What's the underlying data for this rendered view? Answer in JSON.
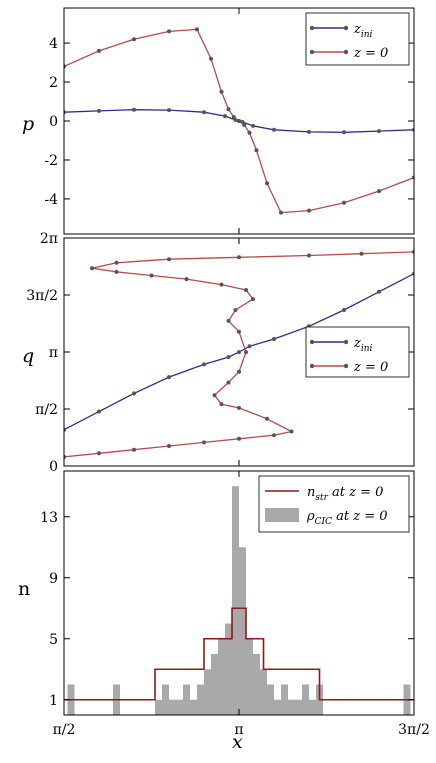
{
  "chart_data": [
    {
      "type": "line",
      "panel": "top",
      "ylabel": "p",
      "ylim": [
        -5.8,
        5.8
      ],
      "yticks": [
        -4,
        -2,
        0,
        2,
        4
      ],
      "ytick_labels": [
        "-4",
        "-2",
        "0",
        "2",
        "4"
      ],
      "xlim": [
        0.5,
        1.5
      ],
      "legend": {
        "position": "top-right",
        "entries": [
          "z_ini",
          "z = 0"
        ]
      },
      "series": [
        {
          "name": "z_ini",
          "color": "#2b2f8c",
          "points": [
            [
              0.5,
              0.45
            ],
            [
              0.6,
              0.52
            ],
            [
              0.7,
              0.58
            ],
            [
              0.8,
              0.56
            ],
            [
              0.9,
              0.45
            ],
            [
              0.96,
              0.25
            ],
            [
              0.99,
              0.05
            ],
            [
              1.0,
              0.0
            ],
            [
              1.01,
              -0.05
            ],
            [
              1.04,
              -0.25
            ],
            [
              1.1,
              -0.45
            ],
            [
              1.2,
              -0.56
            ],
            [
              1.3,
              -0.58
            ],
            [
              1.4,
              -0.52
            ],
            [
              1.5,
              -0.45
            ]
          ]
        },
        {
          "name": "z = 0",
          "color": "#b84a4a",
          "points": [
            [
              0.5,
              2.8
            ],
            [
              0.6,
              3.6
            ],
            [
              0.7,
              4.2
            ],
            [
              0.8,
              4.6
            ],
            [
              0.88,
              4.7
            ],
            [
              0.92,
              3.2
            ],
            [
              0.95,
              1.5
            ],
            [
              0.97,
              0.6
            ],
            [
              0.985,
              0.2
            ],
            [
              1.0,
              0.0
            ],
            [
              1.015,
              -0.2
            ],
            [
              1.03,
              -0.6
            ],
            [
              1.05,
              -1.5
            ],
            [
              1.08,
              -3.2
            ],
            [
              1.12,
              -4.7
            ],
            [
              1.2,
              -4.6
            ],
            [
              1.3,
              -4.2
            ],
            [
              1.4,
              -3.6
            ],
            [
              1.5,
              -2.9
            ]
          ]
        }
      ]
    },
    {
      "type": "line",
      "panel": "middle",
      "ylabel": "q",
      "ylim": [
        0,
        6.2832
      ],
      "yticks": [
        0,
        1.5708,
        3.1416,
        4.7124,
        6.2832
      ],
      "ytick_labels": [
        "0",
        "π/2",
        "π",
        "3π/2",
        "2π"
      ],
      "xlim": [
        0.5,
        1.5
      ],
      "legend": {
        "position": "center-right",
        "entries": [
          "z_ini",
          "z = 0"
        ]
      },
      "series": [
        {
          "name": "z_ini",
          "color": "#2b2f8c",
          "points": [
            [
              0.5,
              1.0
            ],
            [
              0.6,
              1.5
            ],
            [
              0.7,
              2.0
            ],
            [
              0.8,
              2.45
            ],
            [
              0.9,
              2.8
            ],
            [
              0.97,
              3.0
            ],
            [
              1.0,
              3.14
            ],
            [
              1.03,
              3.3
            ],
            [
              1.1,
              3.5
            ],
            [
              1.2,
              3.85
            ],
            [
              1.3,
              4.3
            ],
            [
              1.4,
              4.8
            ],
            [
              1.5,
              5.3
            ]
          ]
        },
        {
          "name": "z = 0",
          "color": "#b84a4a",
          "points": [
            [
              0.5,
              0.25
            ],
            [
              0.6,
              0.35
            ],
            [
              0.7,
              0.45
            ],
            [
              0.8,
              0.55
            ],
            [
              0.9,
              0.65
            ],
            [
              1.0,
              0.75
            ],
            [
              1.1,
              0.85
            ],
            [
              1.15,
              0.95
            ],
            [
              1.08,
              1.3
            ],
            [
              1.0,
              1.6
            ],
            [
              0.95,
              1.7
            ],
            [
              0.93,
              1.95
            ],
            [
              0.97,
              2.3
            ],
            [
              1.0,
              2.6
            ],
            [
              1.02,
              3.14
            ],
            [
              1.0,
              3.7
            ],
            [
              0.97,
              4.0
            ],
            [
              0.99,
              4.3
            ],
            [
              1.04,
              4.6
            ],
            [
              1.02,
              4.85
            ],
            [
              0.95,
              5.0
            ],
            [
              0.85,
              5.15
            ],
            [
              0.75,
              5.25
            ],
            [
              0.65,
              5.35
            ],
            [
              0.58,
              5.45
            ],
            [
              0.65,
              5.6
            ],
            [
              0.8,
              5.7
            ],
            [
              1.0,
              5.75
            ],
            [
              1.2,
              5.8
            ],
            [
              1.35,
              5.85
            ],
            [
              1.5,
              5.9
            ]
          ]
        }
      ]
    },
    {
      "type": "bar",
      "panel": "bottom",
      "ylabel": "n",
      "xlabel": "x",
      "ylim": [
        0,
        16
      ],
      "yticks": [
        1,
        5,
        9,
        13
      ],
      "ytick_labels": [
        "1",
        "5",
        "9",
        "13"
      ],
      "xlim": [
        0.5,
        1.5
      ],
      "xticks": [
        0.5,
        1.0,
        1.5
      ],
      "xtick_labels": [
        "π/2",
        "π",
        "3π/2"
      ],
      "legend": {
        "position": "top-right",
        "entries": [
          "n_str at z = 0",
          "ρ_CIC at z = 0"
        ]
      },
      "series": [
        {
          "name": "n_str at z = 0",
          "color": "#8b1a1a",
          "steps": [
            [
              0.5,
              1
            ],
            [
              0.76,
              3
            ],
            [
              0.9,
              5
            ],
            [
              0.98,
              7
            ],
            [
              1.02,
              5
            ],
            [
              1.07,
              3
            ],
            [
              1.23,
              1
            ],
            [
              1.5,
              1
            ]
          ]
        },
        {
          "name": "ρ_CIC at z = 0",
          "color": "#a9a9a9",
          "bins": [
            [
              0.51,
              0.53,
              2
            ],
            [
              0.59,
              0.61,
              0
            ],
            [
              0.64,
              0.66,
              2
            ],
            [
              0.73,
              0.75,
              0
            ],
            [
              0.76,
              0.78,
              1
            ],
            [
              0.78,
              0.8,
              2
            ],
            [
              0.8,
              0.82,
              1
            ],
            [
              0.82,
              0.84,
              1
            ],
            [
              0.84,
              0.86,
              2
            ],
            [
              0.86,
              0.88,
              1
            ],
            [
              0.88,
              0.9,
              2
            ],
            [
              0.9,
              0.92,
              3
            ],
            [
              0.92,
              0.94,
              4
            ],
            [
              0.94,
              0.96,
              5
            ],
            [
              0.96,
              0.98,
              6
            ],
            [
              0.98,
              1.0,
              15
            ],
            [
              1.0,
              1.02,
              11
            ],
            [
              1.02,
              1.04,
              5
            ],
            [
              1.04,
              1.06,
              4
            ],
            [
              1.06,
              1.08,
              3
            ],
            [
              1.08,
              1.1,
              2
            ],
            [
              1.1,
              1.12,
              1
            ],
            [
              1.12,
              1.14,
              2
            ],
            [
              1.14,
              1.16,
              1
            ],
            [
              1.16,
              1.18,
              1
            ],
            [
              1.18,
              1.2,
              2
            ],
            [
              1.2,
              1.22,
              1
            ],
            [
              1.22,
              1.24,
              2
            ],
            [
              1.25,
              1.27,
              0
            ],
            [
              1.35,
              1.37,
              0
            ],
            [
              1.47,
              1.49,
              2
            ]
          ]
        }
      ]
    }
  ]
}
